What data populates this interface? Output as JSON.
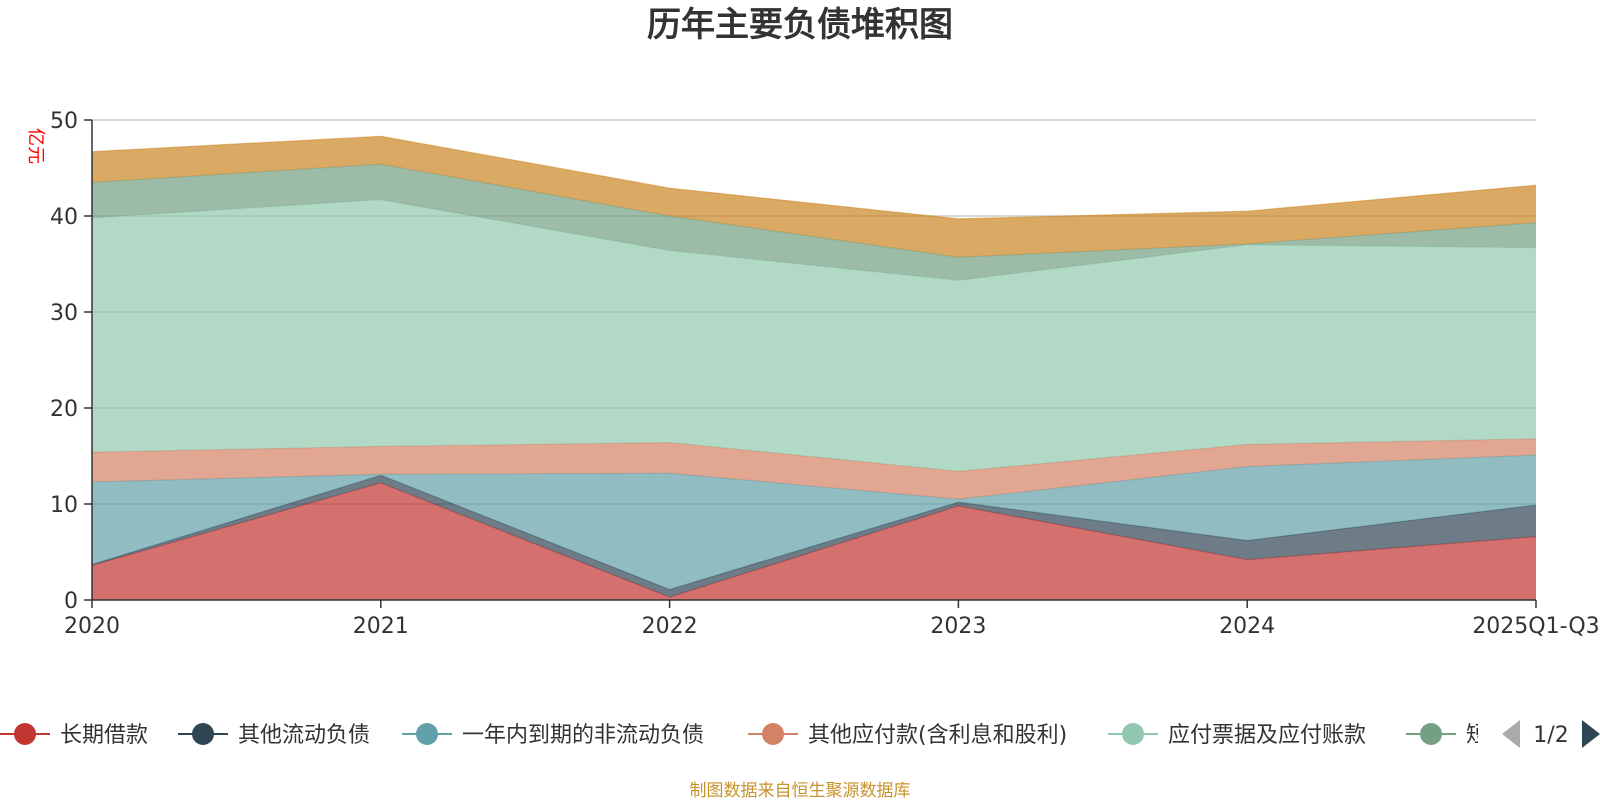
{
  "chart_data": {
    "type": "area",
    "stacked": true,
    "title": "历年主要负债堆积图",
    "ylabel": "亿元",
    "ylim": [
      0,
      50
    ],
    "yticks": [
      0,
      10,
      20,
      30,
      40,
      50
    ],
    "grid": true,
    "categories": [
      "2020",
      "2021",
      "2022",
      "2023",
      "2024",
      "2025Q1-Q3"
    ],
    "series": [
      {
        "name": "长期借款",
        "color": "#c23531",
        "values": [
          3.6,
          12.2,
          0.3,
          9.8,
          4.2,
          6.6
        ]
      },
      {
        "name": "其他流动负债",
        "color": "#2f4554",
        "values": [
          0.1,
          0.8,
          0.8,
          0.4,
          2.0,
          3.3
        ]
      },
      {
        "name": "一年内到期的非流动负债",
        "color": "#61a0a8",
        "values": [
          8.6,
          0.1,
          12.1,
          0.3,
          7.7,
          5.2
        ]
      },
      {
        "name": "其他应付款(含利息和股利)",
        "color": "#d48265",
        "values": [
          3.1,
          2.9,
          3.2,
          2.9,
          2.3,
          1.7
        ]
      },
      {
        "name": "应付票据及应付账款",
        "color": "#91c7ae",
        "values": [
          24.4,
          25.7,
          20.0,
          19.9,
          20.8,
          19.9
        ]
      },
      {
        "name": "短期借款",
        "color": "#749f83",
        "values": [
          3.7,
          3.7,
          3.6,
          2.4,
          0.1,
          2.6
        ]
      },
      {
        "name": "",
        "color": "#ca8622",
        "values": [
          3.2,
          2.9,
          2.9,
          4.0,
          3.4,
          3.9
        ]
      }
    ]
  },
  "legend": {
    "items": [
      "长期借款",
      "其他流动负债",
      "一年内到期的非流动负债",
      "其他应付款(含利息和股利)",
      "应付票据及应付账款",
      "短"
    ],
    "page": "1/2"
  },
  "footer": {
    "source": "制图数据来自恒生聚源数据库"
  },
  "colors": {
    "axis_unit": "#ff0000",
    "footer": "#c8922a",
    "legend_arrow_active": "#2f4554",
    "legend_arrow_inactive": "#aaaaaa"
  }
}
